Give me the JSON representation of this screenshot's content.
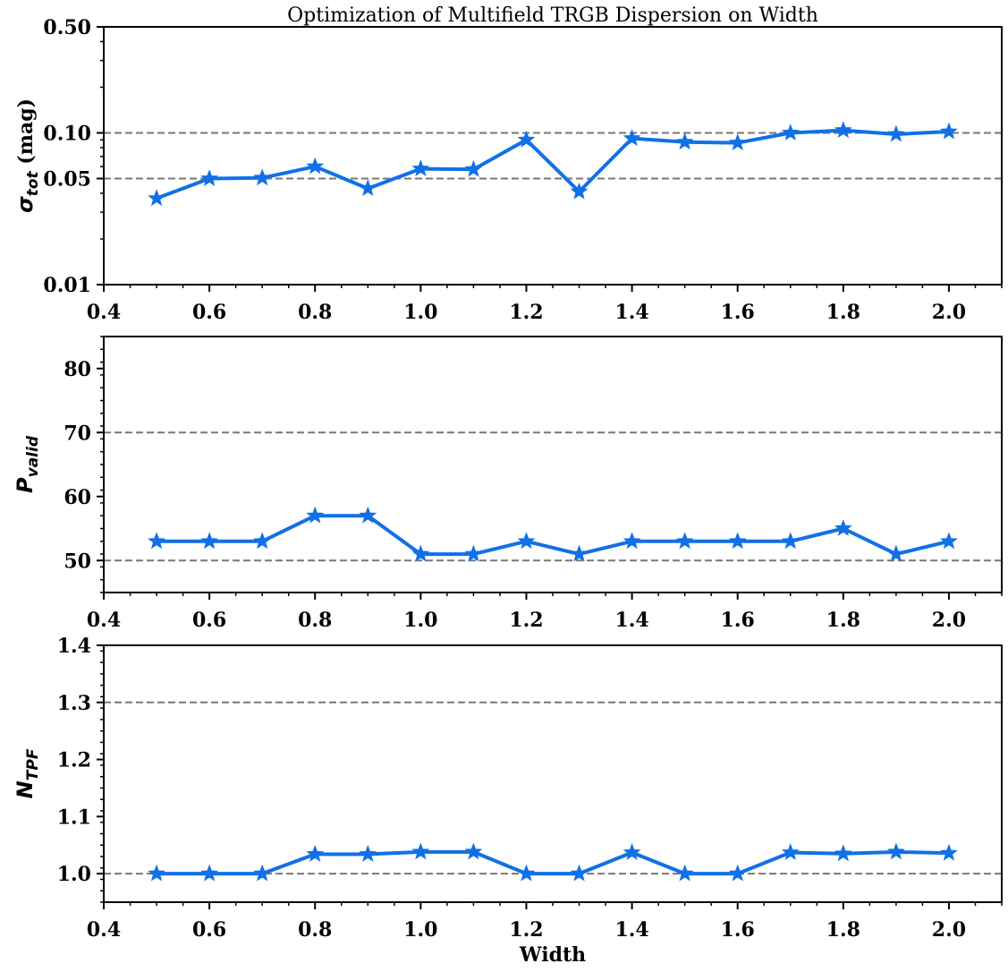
{
  "figure": {
    "title": "Optimization of Multifield TRGB Dispersion on Width",
    "xlabel": "Width"
  },
  "chart_data": [
    {
      "type": "line",
      "yscale": "log",
      "xlim": [
        0.4,
        2.1
      ],
      "ylim": [
        0.01,
        0.5
      ],
      "x": [
        0.5,
        0.6,
        0.7,
        0.8,
        0.9,
        1.0,
        1.1,
        1.2,
        1.3,
        1.4,
        1.5,
        1.6,
        1.7,
        1.8,
        1.9,
        2.0
      ],
      "x_ticks": [
        "0.4",
        "0.6",
        "0.8",
        "1.0",
        "1.2",
        "1.4",
        "1.6",
        "1.8",
        "2.0"
      ],
      "y_ticks": [
        {
          "value": 0.01,
          "label": "0.01"
        },
        {
          "value": 0.05,
          "label": "0.05"
        },
        {
          "value": 0.1,
          "label": "0.10"
        },
        {
          "value": 0.5,
          "label": "0.50"
        }
      ],
      "ylabel": {
        "symbol": "σ",
        "subscript": "tot",
        "unit": " (mag)"
      },
      "hlines": [
        0.05,
        0.1
      ],
      "series": [
        {
          "marker": "star",
          "color": "#1170e6",
          "values": [
            0.037,
            0.05,
            0.0505,
            0.06,
            0.043,
            0.058,
            0.0575,
            0.09,
            0.041,
            0.092,
            0.087,
            0.086,
            0.1,
            0.104,
            0.098,
            0.102
          ]
        }
      ]
    },
    {
      "type": "line",
      "yscale": "linear",
      "xlim": [
        0.4,
        2.1
      ],
      "ylim": [
        45,
        85
      ],
      "x": [
        0.5,
        0.6,
        0.7,
        0.8,
        0.9,
        1.0,
        1.1,
        1.2,
        1.3,
        1.4,
        1.5,
        1.6,
        1.7,
        1.8,
        1.9,
        2.0
      ],
      "x_ticks": [
        "0.4",
        "0.6",
        "0.8",
        "1.0",
        "1.2",
        "1.4",
        "1.6",
        "1.8",
        "2.0"
      ],
      "y_ticks": [
        {
          "value": 50,
          "label": "50"
        },
        {
          "value": 60,
          "label": "60"
        },
        {
          "value": 70,
          "label": "70"
        },
        {
          "value": 80,
          "label": "80"
        }
      ],
      "ylabel": {
        "symbol": "P",
        "subscript": "valid",
        "unit": ""
      },
      "hlines": [
        50,
        70
      ],
      "series": [
        {
          "marker": "star",
          "color": "#1170e6",
          "values": [
            53,
            53,
            53,
            57,
            57,
            51,
            51,
            53,
            51,
            53,
            53,
            53,
            53,
            55,
            51,
            53
          ]
        }
      ]
    },
    {
      "type": "line",
      "yscale": "linear",
      "xlim": [
        0.4,
        2.1
      ],
      "ylim": [
        0.95,
        1.4
      ],
      "x": [
        0.5,
        0.6,
        0.7,
        0.8,
        0.9,
        1.0,
        1.1,
        1.2,
        1.3,
        1.4,
        1.5,
        1.6,
        1.7,
        1.8,
        1.9,
        2.0
      ],
      "x_ticks": [
        "0.4",
        "0.6",
        "0.8",
        "1.0",
        "1.2",
        "1.4",
        "1.6",
        "1.8",
        "2.0"
      ],
      "y_ticks": [
        {
          "value": 1.0,
          "label": "1.0"
        },
        {
          "value": 1.1,
          "label": "1.1"
        },
        {
          "value": 1.2,
          "label": "1.2"
        },
        {
          "value": 1.3,
          "label": "1.3"
        },
        {
          "value": 1.4,
          "label": "1.4"
        }
      ],
      "ylabel": {
        "symbol": "N",
        "subscript": "TPF",
        "unit": ""
      },
      "hlines": [
        1.0,
        1.3
      ],
      "series": [
        {
          "marker": "star",
          "color": "#1170e6",
          "values": [
            1.0,
            1.0,
            1.0,
            1.034,
            1.034,
            1.038,
            1.038,
            1.0,
            1.0,
            1.037,
            1.0,
            1.0,
            1.037,
            1.035,
            1.038,
            1.036
          ]
        }
      ]
    }
  ]
}
